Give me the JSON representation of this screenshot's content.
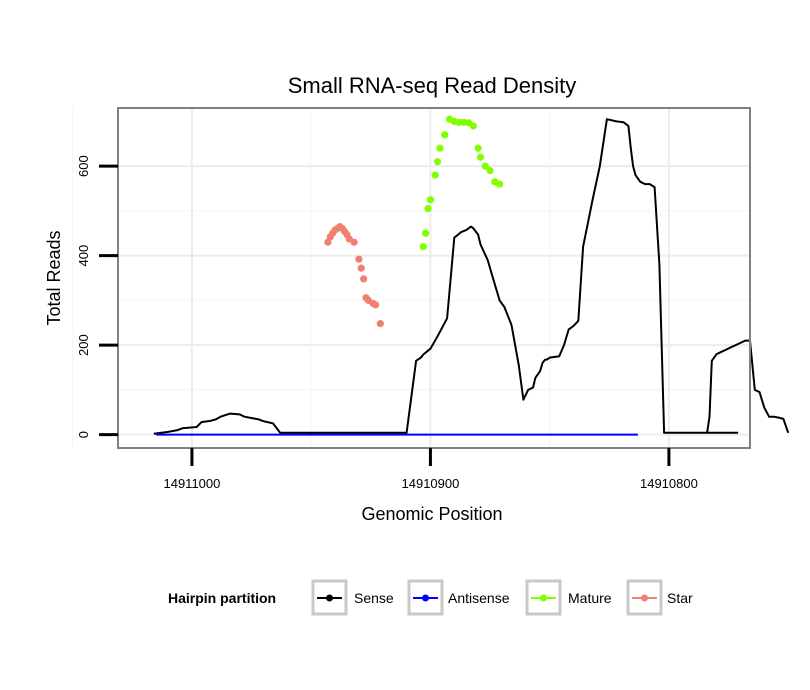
{
  "chart_data": {
    "type": "line",
    "title": "Small RNA-seq Read Density",
    "xlabel": "Genomic Position",
    "ylabel": "Total Reads",
    "x_reversed": true,
    "xlim": [
      14911031,
      14910766
    ],
    "ylim": [
      -30,
      730
    ],
    "x_ticks": [
      14911000,
      14910900,
      14910800
    ],
    "x_tick_labels": [
      "14911000",
      "14910900",
      "14910800"
    ],
    "y_ticks": [
      0,
      200,
      400,
      600
    ],
    "y_tick_labels": [
      "0",
      "200",
      "400",
      "600"
    ],
    "grid": true,
    "legend": {
      "title": "Hairpin partition",
      "position": "bottom",
      "entries": [
        {
          "label": "Sense",
          "color": "#000000"
        },
        {
          "label": "Antisense",
          "color": "#0000ff"
        },
        {
          "label": "Mature",
          "color": "#7fff00"
        },
        {
          "label": "Star",
          "color": "#f08070"
        }
      ]
    },
    "series": [
      {
        "name": "Sense",
        "color": "#000000",
        "x": [
          14911016,
          14911010,
          14911006,
          14911004,
          14910998,
          14910996,
          14910992,
          14910990,
          14910988,
          14910984,
          14910980,
          14910978,
          14910972,
          14910970,
          14910966,
          14910963,
          14910930,
          14910910,
          14910906,
          14910904,
          14910903,
          14910900,
          14910897,
          14910893,
          14910890,
          14910887,
          14910885,
          14910884,
          14910883,
          14910882,
          14910881,
          14910880,
          14910879,
          14910876,
          14910873,
          14910871,
          14910869,
          14910866,
          14910863,
          14910861,
          14910859,
          14910857,
          14910856,
          14910854,
          14910853,
          14910852,
          14910851,
          14910850,
          14910846,
          14910844,
          14910842,
          14910840,
          14910838,
          14910836,
          14910832,
          14910829,
          14910826,
          14910822,
          14910819,
          14910817,
          14910816,
          14910815,
          14910814,
          14910812,
          14910810,
          14910808,
          14910806,
          14910804,
          14910802,
          14910800,
          14910799,
          14910798,
          14910797,
          14910796,
          14910795,
          14910794,
          14910793,
          14910791,
          14910789,
          14910787,
          14910785,
          14910783,
          14910781,
          14910779,
          14910777,
          14910775,
          14910774,
          14910773,
          14910771
        ],
        "y": [
          2,
          6,
          10,
          14,
          17,
          28,
          31,
          34,
          40,
          47,
          45,
          40,
          34,
          30,
          25,
          4,
          4,
          4,
          165,
          172,
          179,
          192,
          220,
          260,
          440,
          453,
          457,
          461,
          465,
          461,
          454,
          447,
          425,
          390,
          336,
          300,
          285,
          245,
          156,
          78,
          100,
          105,
          127,
          142,
          160,
          167,
          168,
          172,
          175,
          200,
          235,
          243,
          254,
          420,
          525,
          600,
          705,
          700,
          698,
          690,
          640,
          600,
          580,
          565,
          560,
          560,
          553,
          380,
          4,
          4,
          4,
          4,
          4,
          4,
          4,
          4,
          4,
          4,
          4,
          4,
          4,
          4,
          4,
          4,
          4,
          4,
          4,
          4,
          4
        ],
        "x2": [
          14910784,
          14910783,
          14910782,
          14910780,
          14910778,
          14910776,
          14910774,
          14910772,
          14910770,
          14910768,
          14910766,
          14910764,
          14910762,
          14910760,
          14910758,
          14910756,
          14910754,
          14910752,
          14910750
        ],
        "y2": [
          4,
          40,
          165,
          180,
          185,
          190,
          195,
          200,
          205,
          210,
          210,
          100,
          95,
          60,
          40,
          40,
          38,
          35,
          4
        ]
      },
      {
        "name": "Antisense",
        "color": "#0000ff",
        "x": [
          14911015,
          14910813
        ],
        "y": [
          0,
          0
        ]
      },
      {
        "name": "Mature",
        "color": "#7fff00",
        "x": [
          14910903,
          14910902,
          14910901,
          14910900,
          14910898,
          14910897,
          14910896,
          14910894,
          14910892,
          14910890,
          14910888,
          14910886,
          14910884,
          14910882,
          14910880,
          14910879,
          14910877,
          14910875,
          14910873,
          14910871
        ],
        "y": [
          420,
          450,
          505,
          525,
          580,
          610,
          640,
          670,
          705,
          700,
          698,
          698,
          697,
          690,
          640,
          620,
          600,
          590,
          565,
          560
        ]
      },
      {
        "name": "Star",
        "color": "#f08070",
        "x": [
          14910943,
          14910942,
          14910941,
          14910940,
          14910939,
          14910938,
          14910937,
          14910936,
          14910935,
          14910934,
          14910932,
          14910930,
          14910929,
          14910928,
          14910927,
          14910926,
          14910924,
          14910923,
          14910921
        ],
        "y": [
          430,
          442,
          450,
          457,
          461,
          465,
          461,
          454,
          447,
          437,
          430,
          392,
          372,
          348,
          306,
          300,
          293,
          290,
          248
        ]
      }
    ]
  }
}
